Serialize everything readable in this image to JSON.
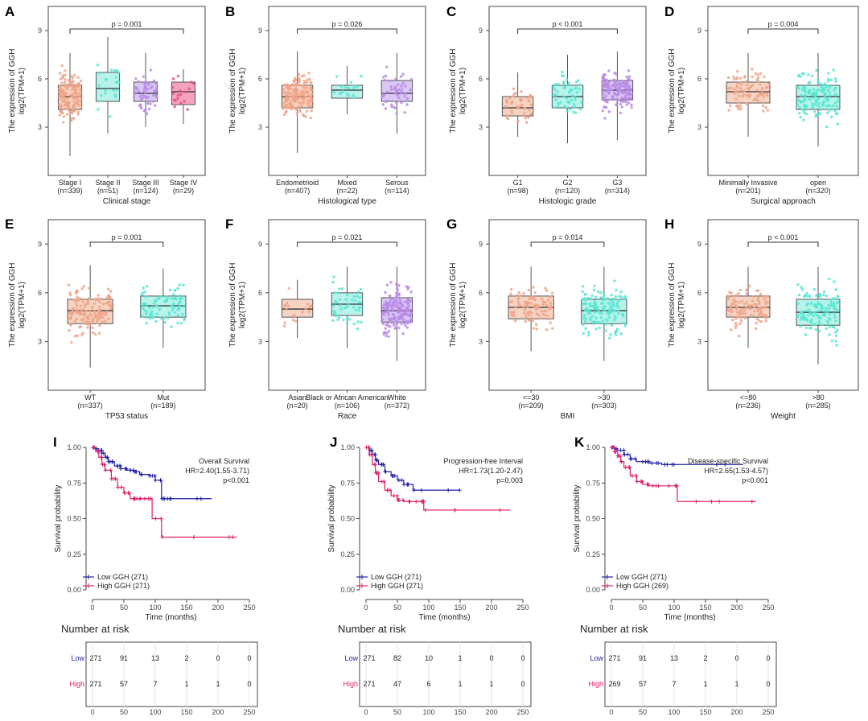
{
  "figure": {
    "colors": {
      "salmon_fill": "#f7d3c3",
      "salmon_pt": "#f0a387",
      "cyan_fill": "#b8f3ea",
      "cyan_pt": "#54e6d3",
      "purple_fill": "#d9c8f3",
      "purple_pt": "#b88ae8",
      "pink_fill": "#f5a3bd",
      "pink_pt": "#e0507f",
      "low_curve": "#1f1fa8",
      "high_curve": "#e0206a"
    }
  },
  "chart_data": [
    {
      "panel": "A",
      "type": "box",
      "ylabel_line1": "The expression of GGH",
      "ylabel_line2": "log2(TPM+1)",
      "ylim": [
        0,
        10.5
      ],
      "yticks": [
        3,
        6,
        9
      ],
      "xlabel": "Clinical stage",
      "pvalue": "p = 0.001",
      "bracket": [
        0,
        3
      ],
      "categories": [
        {
          "label": "Stage I",
          "n": "(n=339)",
          "color": "salmon",
          "stats": {
            "min": 1.2,
            "q1": 4.1,
            "median": 4.9,
            "q3": 5.6,
            "max": 7.6
          }
        },
        {
          "label": "Stage II",
          "n": "(n=51)",
          "color": "cyan",
          "stats": {
            "min": 2.6,
            "q1": 4.6,
            "median": 5.4,
            "q3": 6.4,
            "max": 8.6
          }
        },
        {
          "label": "Stage III",
          "n": "(n=124)",
          "color": "purple",
          "stats": {
            "min": 3.0,
            "q1": 4.6,
            "median": 5.1,
            "q3": 5.8,
            "max": 7.6
          }
        },
        {
          "label": "Stage IV",
          "n": "(n=29)",
          "color": "pink",
          "stats": {
            "min": 3.2,
            "q1": 4.4,
            "median": 5.2,
            "q3": 5.8,
            "max": 6.6
          }
        }
      ]
    },
    {
      "panel": "B",
      "type": "box",
      "ylabel_line1": "The expression of GGH",
      "ylabel_line2": "log2(TPM+1)",
      "ylim": [
        0,
        10.5
      ],
      "yticks": [
        3,
        6,
        9
      ],
      "xlabel": "Histological type",
      "pvalue": "p = 0.026",
      "bracket": [
        0,
        2
      ],
      "categories": [
        {
          "label": "Endometrioid",
          "n": "(n=407)",
          "color": "salmon",
          "stats": {
            "min": 1.4,
            "q1": 4.2,
            "median": 4.9,
            "q3": 5.6,
            "max": 7.7
          }
        },
        {
          "label": "Mixed",
          "n": "(n=22)",
          "color": "cyan",
          "stats": {
            "min": 3.8,
            "q1": 4.8,
            "median": 5.3,
            "q3": 5.6,
            "max": 6.8
          }
        },
        {
          "label": "Serous",
          "n": "(n=114)",
          "color": "purple",
          "stats": {
            "min": 2.6,
            "q1": 4.6,
            "median": 5.1,
            "q3": 5.9,
            "max": 7.6
          }
        }
      ]
    },
    {
      "panel": "C",
      "type": "box",
      "ylabel_line1": "The expression of GGH",
      "ylabel_line2": "log2(TPM+1)",
      "ylim": [
        0,
        10.5
      ],
      "yticks": [
        3,
        6,
        9
      ],
      "xlabel": "Histologic grade",
      "pvalue": "p < 0.001",
      "bracket": [
        0,
        2
      ],
      "categories": [
        {
          "label": "G1",
          "n": "(n=98)",
          "color": "salmon",
          "stats": {
            "min": 2.4,
            "q1": 3.7,
            "median": 4.2,
            "q3": 4.9,
            "max": 6.4
          }
        },
        {
          "label": "G2",
          "n": "(n=120)",
          "color": "cyan",
          "stats": {
            "min": 2.0,
            "q1": 4.2,
            "median": 4.9,
            "q3": 5.6,
            "max": 7.5
          }
        },
        {
          "label": "G3",
          "n": "(n=314)",
          "color": "purple",
          "stats": {
            "min": 2.2,
            "q1": 4.7,
            "median": 5.3,
            "q3": 5.9,
            "max": 7.7
          }
        }
      ]
    },
    {
      "panel": "D",
      "type": "box",
      "ylabel_line1": "The expression of GGH",
      "ylabel_line2": "log2(TPM+1)",
      "ylim": [
        0,
        10.5
      ],
      "yticks": [
        3,
        6,
        9
      ],
      "xlabel": "Surgical approach",
      "pvalue": "p = 0.004",
      "bracket": [
        0,
        1
      ],
      "categories": [
        {
          "label": "Minimally Invasive",
          "n": "(n=201)",
          "color": "salmon",
          "stats": {
            "min": 2.4,
            "q1": 4.5,
            "median": 5.2,
            "q3": 5.8,
            "max": 7.6
          }
        },
        {
          "label": "open",
          "n": "(n=320)",
          "color": "cyan",
          "stats": {
            "min": 1.8,
            "q1": 4.1,
            "median": 4.9,
            "q3": 5.6,
            "max": 7.6
          }
        }
      ]
    },
    {
      "panel": "E",
      "type": "box",
      "ylabel_line1": "The expression of GGH",
      "ylabel_line2": "log2(TPM+1)",
      "ylim": [
        0,
        10.5
      ],
      "yticks": [
        3,
        6,
        9
      ],
      "xlabel": "TP53 status",
      "pvalue": "p = 0.001",
      "bracket": [
        0,
        1
      ],
      "categories": [
        {
          "label": "WT",
          "n": "(n=337)",
          "color": "salmon",
          "stats": {
            "min": 1.4,
            "q1": 4.1,
            "median": 4.9,
            "q3": 5.6,
            "max": 7.7
          }
        },
        {
          "label": "Mut",
          "n": "(n=189)",
          "color": "cyan",
          "stats": {
            "min": 2.6,
            "q1": 4.5,
            "median": 5.2,
            "q3": 5.8,
            "max": 7.5
          }
        }
      ]
    },
    {
      "panel": "F",
      "type": "box",
      "ylabel_line1": "The expression of GGH",
      "ylabel_line2": "log2(TPM+1)",
      "ylim": [
        0,
        10.5
      ],
      "yticks": [
        3,
        6,
        9
      ],
      "xlabel": "Race",
      "pvalue": "p = 0.021",
      "bracket": [
        0,
        2
      ],
      "categories": [
        {
          "label": "Asian",
          "n": "(n=20)",
          "color": "salmon",
          "stats": {
            "min": 3.2,
            "q1": 4.5,
            "median": 5.0,
            "q3": 5.6,
            "max": 6.8
          }
        },
        {
          "label": "Black or African American",
          "n": "(n=106)",
          "color": "cyan",
          "stats": {
            "min": 2.6,
            "q1": 4.6,
            "median": 5.3,
            "q3": 6.0,
            "max": 7.6
          }
        },
        {
          "label": "White",
          "n": "(n=372)",
          "color": "purple",
          "stats": {
            "min": 1.8,
            "q1": 4.2,
            "median": 4.9,
            "q3": 5.7,
            "max": 7.6
          }
        }
      ]
    },
    {
      "panel": "G",
      "type": "box",
      "ylabel_line1": "The expression of GGH",
      "ylabel_line2": "log2(TPM+1)",
      "ylim": [
        0,
        10.5
      ],
      "yticks": [
        3,
        6,
        9
      ],
      "xlabel": "BMI",
      "pvalue": "p = 0.014",
      "bracket": [
        0,
        1
      ],
      "categories": [
        {
          "label": "<=30",
          "n": "(n=209)",
          "color": "salmon",
          "stats": {
            "min": 2.4,
            "q1": 4.4,
            "median": 5.1,
            "q3": 5.8,
            "max": 7.6
          }
        },
        {
          "label": ">30",
          "n": "(n=303)",
          "color": "cyan",
          "stats": {
            "min": 1.8,
            "q1": 4.1,
            "median": 4.9,
            "q3": 5.6,
            "max": 7.6
          }
        }
      ]
    },
    {
      "panel": "H",
      "type": "box",
      "ylabel_line1": "The expression of GGH",
      "ylabel_line2": "log2(TPM+1)",
      "ylim": [
        0,
        10.5
      ],
      "yticks": [
        3,
        6,
        9
      ],
      "xlabel": "Weight",
      "pvalue": "p < 0.001",
      "bracket": [
        0,
        1
      ],
      "categories": [
        {
          "label": "<=80",
          "n": "(n=236)",
          "color": "salmon",
          "stats": {
            "min": 2.6,
            "q1": 4.5,
            "median": 5.1,
            "q3": 5.8,
            "max": 7.6
          }
        },
        {
          "label": ">80",
          "n": "(n=285)",
          "color": "cyan",
          "stats": {
            "min": 1.6,
            "q1": 4.0,
            "median": 4.8,
            "q3": 5.6,
            "max": 7.6
          }
        }
      ]
    },
    {
      "panel": "I",
      "type": "survival",
      "ylabel": "Survival probability",
      "xlabel": "Time (months)",
      "xticks": [
        0,
        50,
        100,
        150,
        200,
        250
      ],
      "yticks": [
        "0.00",
        "0.25",
        "0.50",
        "0.75",
        "1.00"
      ],
      "xlim": [
        0,
        250
      ],
      "ylim": [
        0,
        1
      ],
      "annotation": [
        "Overall Survival",
        "HR=2.40(1.55-3.71)",
        "p<0.001"
      ],
      "series": [
        {
          "name": "Low GGH (271)",
          "color": "low",
          "points": [
            [
              0,
              1
            ],
            [
              5,
              0.99
            ],
            [
              10,
              0.98
            ],
            [
              15,
              0.96
            ],
            [
              20,
              0.93
            ],
            [
              25,
              0.9
            ],
            [
              35,
              0.87
            ],
            [
              45,
              0.85
            ],
            [
              55,
              0.84
            ],
            [
              65,
              0.83
            ],
            [
              75,
              0.81
            ],
            [
              90,
              0.8
            ],
            [
              100,
              0.77
            ],
            [
              110,
              0.64
            ],
            [
              120,
              0.64
            ],
            [
              190,
              0.64
            ]
          ]
        },
        {
          "name": "High GGH (271)",
          "color": "high",
          "points": [
            [
              0,
              1
            ],
            [
              5,
              0.97
            ],
            [
              10,
              0.93
            ],
            [
              15,
              0.88
            ],
            [
              20,
              0.84
            ],
            [
              30,
              0.78
            ],
            [
              40,
              0.72
            ],
            [
              50,
              0.68
            ],
            [
              60,
              0.64
            ],
            [
              70,
              0.64
            ],
            [
              80,
              0.64
            ],
            [
              90,
              0.64
            ],
            [
              95,
              0.5
            ],
            [
              110,
              0.37
            ],
            [
              230,
              0.37
            ]
          ]
        }
      ],
      "risk_title": "Number at risk",
      "risk_rows": [
        {
          "label": "Low",
          "values": [
            "271",
            "91",
            "13",
            "2",
            "0",
            "0"
          ]
        },
        {
          "label": "High",
          "values": [
            "271",
            "57",
            "7",
            "1",
            "1",
            "0"
          ]
        }
      ],
      "risk_xticks": [
        "0",
        "50",
        "100",
        "150",
        "200",
        "250"
      ],
      "risk_xlabel": "Time (months)"
    },
    {
      "panel": "J",
      "type": "survival",
      "ylabel": "Survival probability",
      "xlabel": "Time (months)",
      "xticks": [
        0,
        50,
        100,
        150,
        200,
        250
      ],
      "yticks": [
        "0.00",
        "0.25",
        "0.50",
        "0.75",
        "1.00"
      ],
      "xlim": [
        0,
        250
      ],
      "ylim": [
        0,
        1
      ],
      "annotation": [
        "Progression-free Interval",
        "HR=1.73(1.20-2.47)",
        "p=0.003"
      ],
      "series": [
        {
          "name": "Low GGH (271)",
          "color": "low",
          "points": [
            [
              0,
              1
            ],
            [
              5,
              0.98
            ],
            [
              10,
              0.95
            ],
            [
              15,
              0.91
            ],
            [
              20,
              0.88
            ],
            [
              30,
              0.83
            ],
            [
              40,
              0.8
            ],
            [
              50,
              0.77
            ],
            [
              60,
              0.74
            ],
            [
              75,
              0.7
            ],
            [
              90,
              0.7
            ],
            [
              150,
              0.7
            ]
          ]
        },
        {
          "name": "High GGH (271)",
          "color": "high",
          "points": [
            [
              0,
              1
            ],
            [
              5,
              0.95
            ],
            [
              10,
              0.88
            ],
            [
              15,
              0.82
            ],
            [
              20,
              0.76
            ],
            [
              30,
              0.7
            ],
            [
              40,
              0.66
            ],
            [
              50,
              0.63
            ],
            [
              60,
              0.62
            ],
            [
              90,
              0.62
            ],
            [
              92,
              0.56
            ],
            [
              230,
              0.56
            ]
          ]
        }
      ],
      "risk_title": "Number at risk",
      "risk_rows": [
        {
          "label": "Low",
          "values": [
            "271",
            "82",
            "10",
            "1",
            "0",
            "0"
          ]
        },
        {
          "label": "High",
          "values": [
            "271",
            "47",
            "6",
            "1",
            "1",
            "0"
          ]
        }
      ],
      "risk_xticks": [
        "0",
        "50",
        "100",
        "150",
        "200",
        "250"
      ],
      "risk_xlabel": "Time (months)"
    },
    {
      "panel": "K",
      "type": "survival",
      "ylabel": "Survival probability",
      "xlabel": "Time (months)",
      "xticks": [
        0,
        50,
        100,
        150,
        200,
        250
      ],
      "yticks": [
        "0.00",
        "0.25",
        "0.50",
        "0.75",
        "1.00"
      ],
      "xlim": [
        0,
        250
      ],
      "ylim": [
        0,
        1
      ],
      "annotation": [
        "Disease-specific Survival",
        "HR=2.65(1.53-4.57)",
        "p<0.001"
      ],
      "series": [
        {
          "name": "Low GGH (271)",
          "color": "low",
          "points": [
            [
              0,
              1
            ],
            [
              5,
              0.99
            ],
            [
              10,
              0.98
            ],
            [
              20,
              0.95
            ],
            [
              30,
              0.92
            ],
            [
              40,
              0.9
            ],
            [
              60,
              0.89
            ],
            [
              80,
              0.88
            ],
            [
              100,
              0.88
            ],
            [
              210,
              0.88
            ]
          ]
        },
        {
          "name": "High GGH (269)",
          "color": "high",
          "points": [
            [
              0,
              1
            ],
            [
              5,
              0.97
            ],
            [
              10,
              0.94
            ],
            [
              15,
              0.9
            ],
            [
              20,
              0.86
            ],
            [
              30,
              0.8
            ],
            [
              40,
              0.76
            ],
            [
              50,
              0.74
            ],
            [
              60,
              0.73
            ],
            [
              100,
              0.73
            ],
            [
              105,
              0.62
            ],
            [
              230,
              0.62
            ]
          ]
        }
      ],
      "risk_title": "Number at risk",
      "risk_rows": [
        {
          "label": "Low",
          "values": [
            "271",
            "91",
            "13",
            "2",
            "0",
            "0"
          ]
        },
        {
          "label": "High",
          "values": [
            "269",
            "57",
            "7",
            "1",
            "1",
            "0"
          ]
        }
      ],
      "risk_xticks": [
        "0",
        "50",
        "100",
        "150",
        "200",
        "250"
      ],
      "risk_xlabel": "Time (months)"
    }
  ]
}
